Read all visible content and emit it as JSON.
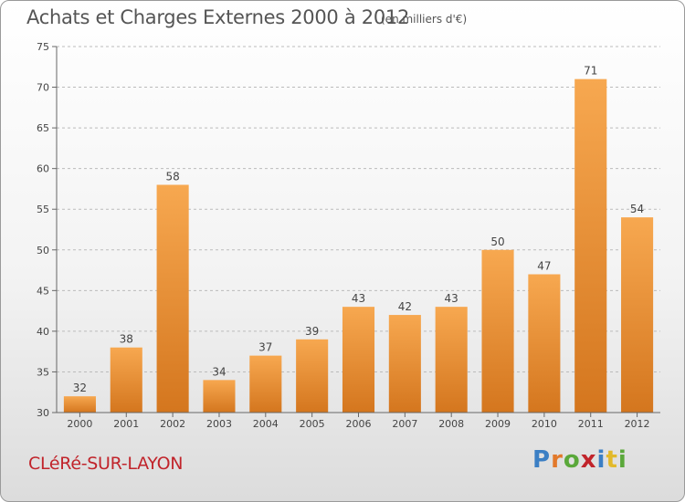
{
  "header": {
    "title": "Achats et Charges Externes 2000 à 2012",
    "subtitle": "(en milliers d'€)"
  },
  "footer": {
    "place": "CLéRé-SUR-LAYON",
    "logo": [
      "P",
      "r",
      "o",
      "x",
      "i",
      "t",
      "i"
    ],
    "logo_colors": [
      "#3b7fc4",
      "#e2792b",
      "#5aa83a",
      "#c1242b",
      "#3b7fc4",
      "#e2b92b",
      "#5aa83a"
    ]
  },
  "colors": {
    "bar_top": "#f7a850",
    "bar_bottom": "#d4761e",
    "grid": "#bbbbbb",
    "axis": "#666666"
  },
  "chart_data": {
    "type": "bar",
    "categories": [
      "2000",
      "2001",
      "2002",
      "2003",
      "2004",
      "2005",
      "2006",
      "2007",
      "2008",
      "2009",
      "2010",
      "2011",
      "2012"
    ],
    "values": [
      32,
      38,
      58,
      34,
      37,
      39,
      43,
      42,
      43,
      50,
      47,
      71,
      54
    ],
    "ylim": [
      30,
      75
    ],
    "yticks": [
      30,
      35,
      40,
      45,
      50,
      55,
      60,
      65,
      70,
      75
    ],
    "grid": true
  }
}
